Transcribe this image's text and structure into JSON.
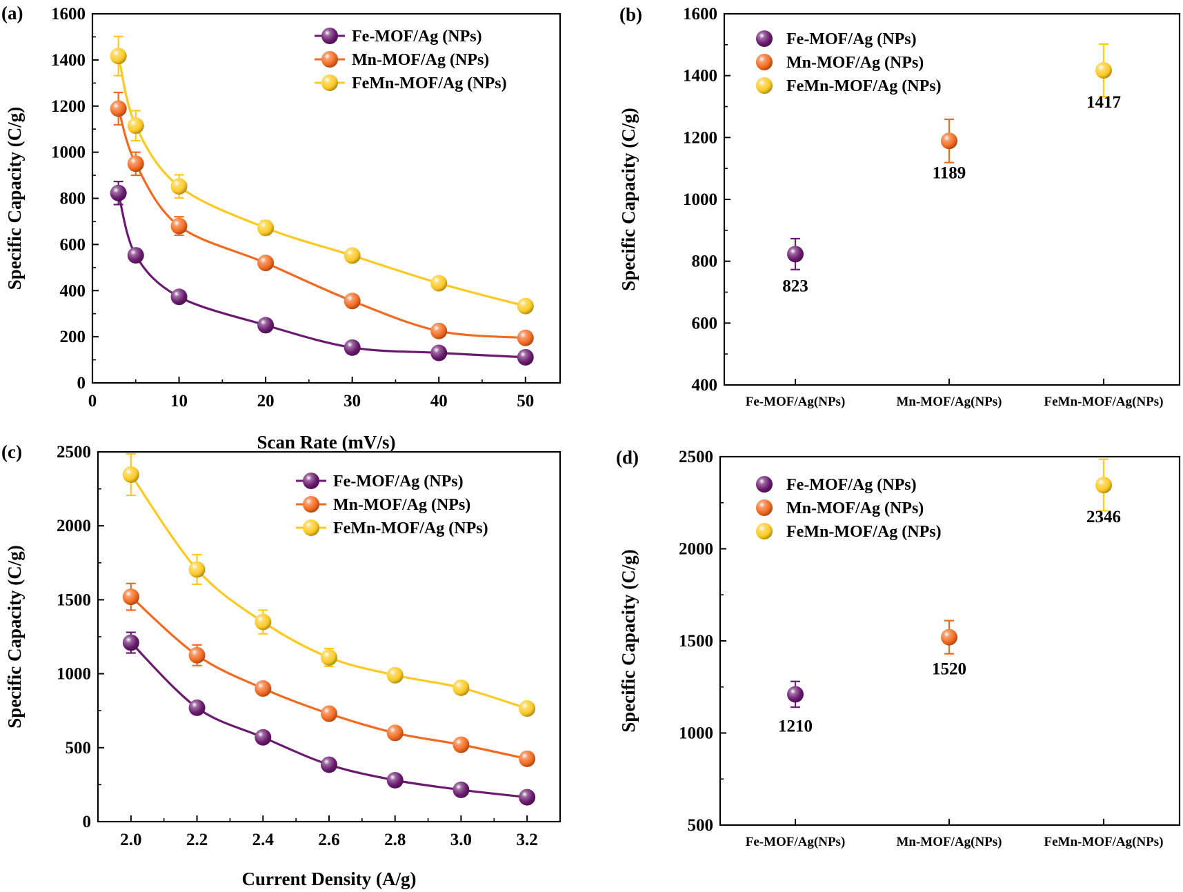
{
  "colors": {
    "Fe": "#6a1a6f",
    "Mn": "#f26a20",
    "FeMn": "#fcc923"
  },
  "chart_data": [
    {
      "panel": "(a)",
      "type": "line",
      "xlabel": "Scan Rate (mV/s)",
      "ylabel": "Specific Capacity (C/g)",
      "xlim": [
        0,
        54
      ],
      "ylim": [
        0,
        1600
      ],
      "xticks": [
        "0",
        "10",
        "20",
        "30",
        "40",
        "50"
      ],
      "yticks": [
        "0",
        "200",
        "400",
        "600",
        "800",
        "1000",
        "1200",
        "1400",
        "1600"
      ],
      "x": [
        3,
        5,
        10,
        20,
        30,
        40,
        50
      ],
      "legend_position": "top-right",
      "series": [
        {
          "name": "Fe-MOF/Ag (NPs)",
          "color_key": "Fe",
          "values": [
            823,
            553,
            373,
            250,
            153,
            130,
            111
          ],
          "errors": [
            50,
            0,
            0,
            0,
            0,
            0,
            0
          ]
        },
        {
          "name": "Mn-MOF/Ag (NPs)",
          "color_key": "Mn",
          "values": [
            1189,
            950,
            680,
            520,
            355,
            225,
            195
          ],
          "errors": [
            70,
            50,
            40,
            0,
            0,
            0,
            0
          ]
        },
        {
          "name": "FeMn-MOF/Ag (NPs)",
          "color_key": "FeMn",
          "values": [
            1417,
            1115,
            852,
            672,
            552,
            432,
            333
          ],
          "errors": [
            85,
            65,
            50,
            30,
            0,
            0,
            0
          ]
        }
      ]
    },
    {
      "panel": "(b)",
      "type": "scatter",
      "xlabel": "",
      "ylabel": "Specific Capacity (C/g)",
      "ylim": [
        400,
        1600
      ],
      "yticks": [
        "400",
        "600",
        "800",
        "1000",
        "1200",
        "1400",
        "1600"
      ],
      "categories": [
        "Fe-MOF/Ag(NPs)",
        "Mn-MOF/Ag(NPs)",
        "FeMn-MOF/Ag(NPs)"
      ],
      "legend_position": "top-left",
      "legend": [
        "Fe-MOF/Ag (NPs)",
        "Mn-MOF/Ag (NPs)",
        "FeMn-MOF/Ag (NPs)"
      ],
      "color_keys": [
        "Fe",
        "Mn",
        "FeMn"
      ],
      "values": [
        823,
        1189,
        1417
      ],
      "errors": [
        50,
        70,
        85
      ],
      "labels": [
        "823",
        "1189",
        "1417"
      ]
    },
    {
      "panel": "(c)",
      "type": "line",
      "xlabel": "Current Density (A/g)",
      "ylabel": "Specific Capacity (C/g)",
      "xlim": [
        1.9,
        3.3
      ],
      "ylim": [
        0,
        2500
      ],
      "xticks": [
        "2.0",
        "2.2",
        "2.4",
        "2.6",
        "2.8",
        "3.0",
        "3.2"
      ],
      "yticks": [
        "0",
        "500",
        "1000",
        "1500",
        "2000",
        "2500"
      ],
      "x": [
        2.0,
        2.2,
        2.4,
        2.6,
        2.8,
        3.0,
        3.2
      ],
      "legend_position": "top-right",
      "series": [
        {
          "name": "Fe-MOF/Ag (NPs)",
          "color_key": "Fe",
          "values": [
            1210,
            770,
            570,
            385,
            280,
            215,
            165
          ],
          "errors": [
            70,
            0,
            0,
            0,
            0,
            0,
            0
          ]
        },
        {
          "name": "Mn-MOF/Ag (NPs)",
          "color_key": "Mn",
          "values": [
            1520,
            1125,
            900,
            730,
            600,
            520,
            425
          ],
          "errors": [
            90,
            70,
            0,
            0,
            0,
            0,
            0
          ]
        },
        {
          "name": "FeMn-MOF/Ag (NPs)",
          "color_key": "FeMn",
          "values": [
            2346,
            1705,
            1350,
            1110,
            990,
            905,
            765
          ],
          "errors": [
            140,
            100,
            80,
            60,
            0,
            0,
            0
          ]
        }
      ]
    },
    {
      "panel": "(d)",
      "type": "scatter",
      "xlabel": "",
      "ylabel": "Specific Capacity (C/g)",
      "ylim": [
        500,
        2500
      ],
      "yticks": [
        "500",
        "1000",
        "1500",
        "2000",
        "2500"
      ],
      "categories": [
        "Fe-MOF/Ag(NPs)",
        "Mn-MOF/Ag(NPs)",
        "FeMn-MOF/Ag(NPs)"
      ],
      "legend_position": "top-left",
      "legend": [
        "Fe-MOF/Ag (NPs)",
        "Mn-MOF/Ag (NPs)",
        "FeMn-MOF/Ag (NPs)"
      ],
      "color_keys": [
        "Fe",
        "Mn",
        "FeMn"
      ],
      "values": [
        1210,
        1520,
        2346
      ],
      "errors": [
        70,
        90,
        140
      ],
      "labels": [
        "1210",
        "1520",
        "2346"
      ]
    }
  ]
}
